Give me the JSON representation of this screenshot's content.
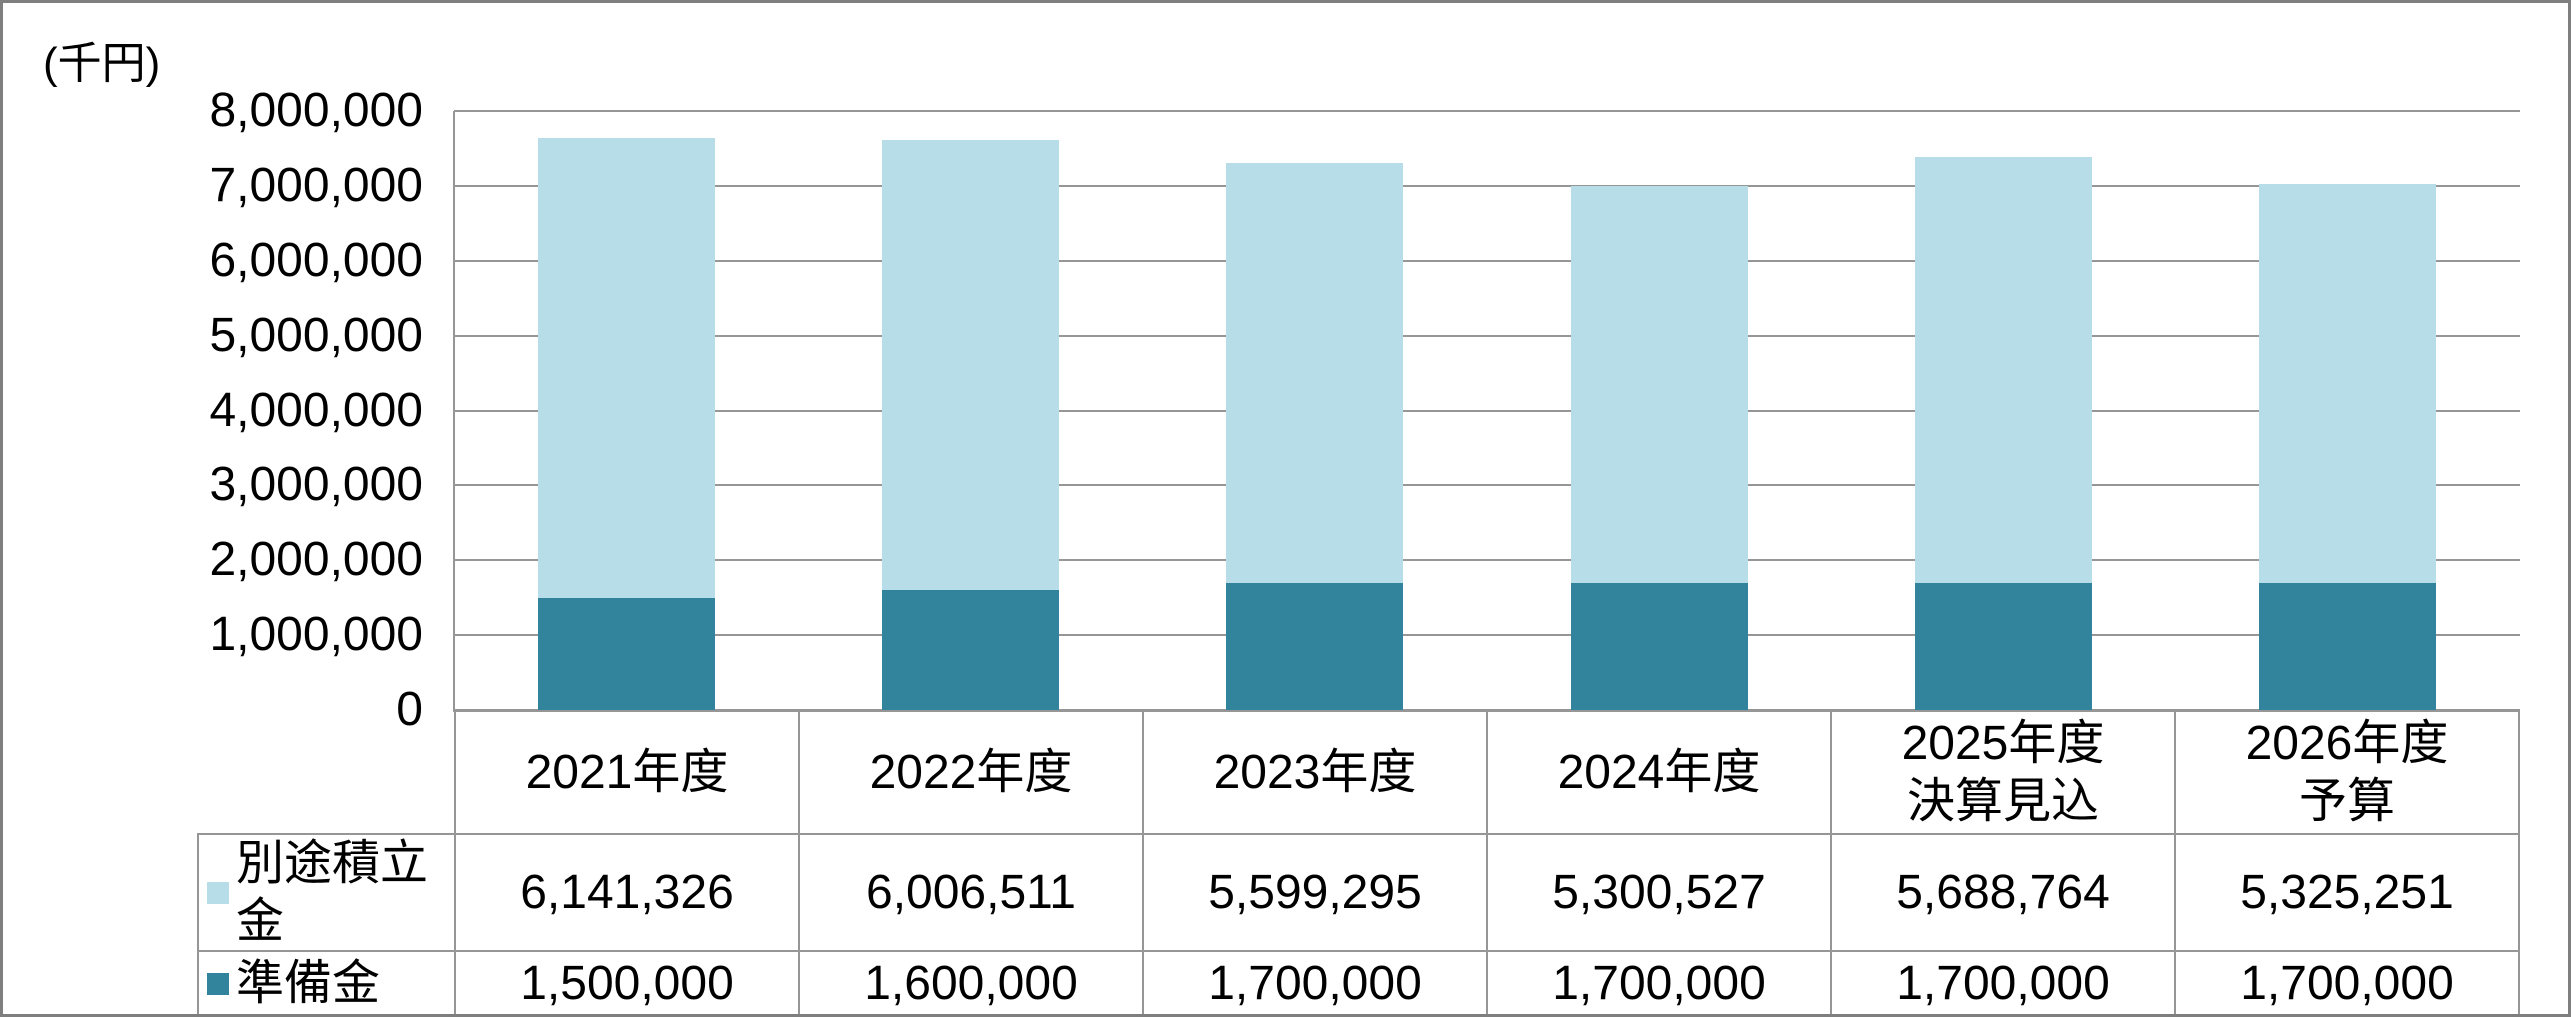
{
  "unit_label": "(千円)",
  "colors": {
    "series_light": "#B6DDE8",
    "series_dark": "#31849B",
    "gridline": "#969696",
    "table_border": "#969696",
    "outer_border": "#7f7f7f",
    "text": "#000000"
  },
  "chart_data": {
    "type": "bar",
    "stacked": true,
    "title": "",
    "ylabel": "(千円)",
    "xlabel": "",
    "ylim": [
      0,
      8000000
    ],
    "ytick_step": 1000000,
    "ytick_labels": [
      "0",
      "1,000,000",
      "2,000,000",
      "3,000,000",
      "4,000,000",
      "5,000,000",
      "6,000,000",
      "7,000,000",
      "8,000,000"
    ],
    "grid": true,
    "legend_position": "data-table-left",
    "categories": [
      "2021年度",
      "2022年度",
      "2023年度",
      "2024年度",
      "2025年度\n決算見込",
      "2026年度\n予算"
    ],
    "series": [
      {
        "name": "別途積立金",
        "color": "#B6DDE8",
        "stack_position": "top",
        "values": [
          6141326,
          6006511,
          5599295,
          5300527,
          5688764,
          5325251
        ]
      },
      {
        "name": "準備金",
        "color": "#31849B",
        "stack_position": "bottom",
        "values": [
          1500000,
          1600000,
          1700000,
          1700000,
          1700000,
          1700000
        ]
      }
    ],
    "totals": [
      7641326,
      7606511,
      7299295,
      7000527,
      7388764,
      7025251
    ]
  },
  "data_table": {
    "header_row": [
      "2021年度",
      "2022年度",
      "2023年度",
      "2024年度",
      "2025年度\n決算見込",
      "2026年度\n予算"
    ],
    "rows": [
      {
        "label": "別途積立金",
        "cells": [
          "6,141,326",
          "6,006,511",
          "5,599,295",
          "5,300,527",
          "5,688,764",
          "5,325,251"
        ]
      },
      {
        "label": "準備金",
        "cells": [
          "1,500,000",
          "1,600,000",
          "1,700,000",
          "1,700,000",
          "1,700,000",
          "1,700,000"
        ]
      }
    ]
  }
}
